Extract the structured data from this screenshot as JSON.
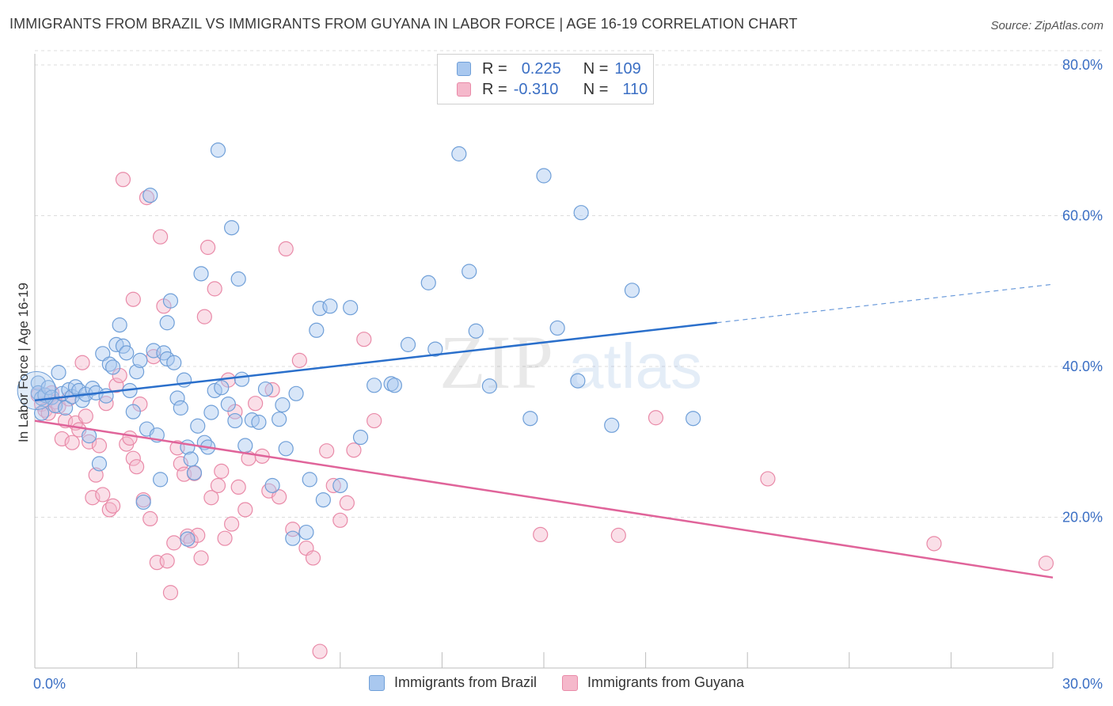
{
  "title": "IMMIGRANTS FROM BRAZIL VS IMMIGRANTS FROM GUYANA IN LABOR FORCE | AGE 16-19 CORRELATION CHART",
  "source": "Source: ZipAtlas.com",
  "watermark": {
    "zip": "ZIP",
    "atlas": "atlas"
  },
  "legend": {
    "brazil": {
      "r_label": "R =",
      "r_value": "0.225",
      "n_label": "N =",
      "n_value": "109"
    },
    "guyana": {
      "r_label": "R =",
      "r_value": "-0.310",
      "n_label": "N =",
      "n_value": "110"
    }
  },
  "colors": {
    "brazil_fill": "#a9c8ef",
    "brazil_stroke": "#6f9fd8",
    "brazil_line": "#2a6fcb",
    "guyana_fill": "#f5b8cb",
    "guyana_stroke": "#e98aa8",
    "guyana_line": "#e0649a",
    "tick_label": "#3b6fc4",
    "grid": "#dcdcdc"
  },
  "chart_data": {
    "type": "scatter",
    "title": "IMMIGRANTS FROM BRAZIL VS IMMIGRANTS FROM GUYANA IN LABOR FORCE | AGE 16-19 CORRELATION CHART",
    "xlabel": "",
    "ylabel": "In Labor Force | Age 16-19",
    "xlim": [
      0,
      30
    ],
    "ylim": [
      0,
      80
    ],
    "x_tick_labels": [
      "0.0%",
      "30.0%"
    ],
    "y_ticks": [
      20,
      40,
      60,
      80
    ],
    "y_tick_labels": [
      "20.0%",
      "40.0%",
      "60.0%",
      "80.0%"
    ],
    "grid": true,
    "legend_position": "top-center",
    "series": [
      {
        "name": "Immigrants from Brazil",
        "trend": {
          "x0": 0,
          "y0": 35.5,
          "x1": 20.1,
          "y1": 45.8,
          "dash_x1": 30,
          "dash_y1": 50.9
        },
        "points": [
          [
            0.1,
            37.8
          ],
          [
            0.1,
            36.5
          ],
          [
            0.2,
            35.8
          ],
          [
            0.2,
            33.8
          ],
          [
            0.3,
            36.2
          ],
          [
            0.4,
            37.2
          ],
          [
            0.5,
            35.9
          ],
          [
            0.6,
            34.8
          ],
          [
            0.7,
            39.2
          ],
          [
            0.8,
            36.4
          ],
          [
            0.9,
            34.5
          ],
          [
            1.0,
            36.9
          ],
          [
            1.1,
            36.0
          ],
          [
            1.2,
            37.3
          ],
          [
            1.3,
            36.8
          ],
          [
            1.4,
            35.5
          ],
          [
            1.5,
            36.3
          ],
          [
            1.6,
            30.8
          ],
          [
            1.7,
            37.1
          ],
          [
            1.8,
            36.5
          ],
          [
            1.9,
            27.1
          ],
          [
            2.0,
            41.7
          ],
          [
            2.1,
            36.1
          ],
          [
            2.2,
            40.3
          ],
          [
            2.3,
            39.9
          ],
          [
            2.4,
            42.9
          ],
          [
            2.5,
            45.5
          ],
          [
            2.6,
            42.7
          ],
          [
            2.7,
            41.8
          ],
          [
            2.8,
            36.8
          ],
          [
            2.9,
            34.0
          ],
          [
            3.0,
            39.3
          ],
          [
            3.1,
            40.8
          ],
          [
            3.2,
            22.0
          ],
          [
            3.3,
            31.7
          ],
          [
            3.4,
            62.7
          ],
          [
            3.5,
            42.1
          ],
          [
            3.6,
            30.9
          ],
          [
            3.7,
            25.0
          ],
          [
            3.8,
            41.8
          ],
          [
            3.9,
            41.0
          ],
          [
            3.9,
            45.8
          ],
          [
            4.0,
            48.7
          ],
          [
            4.1,
            40.5
          ],
          [
            4.2,
            35.8
          ],
          [
            4.3,
            34.5
          ],
          [
            4.4,
            38.2
          ],
          [
            4.5,
            29.3
          ],
          [
            4.5,
            17.1
          ],
          [
            4.6,
            27.7
          ],
          [
            4.7,
            25.9
          ],
          [
            4.8,
            32.1
          ],
          [
            4.9,
            52.3
          ],
          [
            5.0,
            29.9
          ],
          [
            5.1,
            29.3
          ],
          [
            5.2,
            33.9
          ],
          [
            5.3,
            36.8
          ],
          [
            5.4,
            68.7
          ],
          [
            5.5,
            37.2
          ],
          [
            5.7,
            35.0
          ],
          [
            5.8,
            58.4
          ],
          [
            5.9,
            32.8
          ],
          [
            6.0,
            51.6
          ],
          [
            6.1,
            38.3
          ],
          [
            6.2,
            29.5
          ],
          [
            6.4,
            32.9
          ],
          [
            6.6,
            32.6
          ],
          [
            6.8,
            37.0
          ],
          [
            7.0,
            24.2
          ],
          [
            7.2,
            33.0
          ],
          [
            7.3,
            34.9
          ],
          [
            7.4,
            29.1
          ],
          [
            7.6,
            17.2
          ],
          [
            7.7,
            36.4
          ],
          [
            8.0,
            18.0
          ],
          [
            8.1,
            25.0
          ],
          [
            8.3,
            44.8
          ],
          [
            8.4,
            47.7
          ],
          [
            8.5,
            22.3
          ],
          [
            8.7,
            48.0
          ],
          [
            9.0,
            24.2
          ],
          [
            9.3,
            47.8
          ],
          [
            9.6,
            30.6
          ],
          [
            10.0,
            37.5
          ],
          [
            10.5,
            37.7
          ],
          [
            10.6,
            37.5
          ],
          [
            11.0,
            42.9
          ],
          [
            11.6,
            51.1
          ],
          [
            11.8,
            42.3
          ],
          [
            12.5,
            68.2
          ],
          [
            12.8,
            52.6
          ],
          [
            13.0,
            44.7
          ],
          [
            13.4,
            37.4
          ],
          [
            14.6,
            33.1
          ],
          [
            15.0,
            65.3
          ],
          [
            15.4,
            45.1
          ],
          [
            16.1,
            60.4
          ],
          [
            16.0,
            38.1
          ],
          [
            17.0,
            32.2
          ],
          [
            17.6,
            50.1
          ],
          [
            19.4,
            33.1
          ]
        ]
      },
      {
        "name": "Immigrants from Guyana",
        "trend": {
          "x0": 0,
          "y0": 32.8,
          "x1": 30,
          "y1": 12.0
        },
        "points": [
          [
            0.1,
            36.2
          ],
          [
            0.2,
            35.0
          ],
          [
            0.3,
            34.2
          ],
          [
            0.4,
            33.8
          ],
          [
            0.5,
            36.5
          ],
          [
            0.6,
            35.3
          ],
          [
            0.7,
            34.7
          ],
          [
            0.8,
            30.4
          ],
          [
            0.9,
            32.8
          ],
          [
            1.0,
            35.7
          ],
          [
            1.1,
            29.9
          ],
          [
            1.2,
            32.5
          ],
          [
            1.3,
            31.6
          ],
          [
            1.4,
            40.5
          ],
          [
            1.5,
            33.4
          ],
          [
            1.6,
            30.0
          ],
          [
            1.7,
            22.6
          ],
          [
            1.8,
            25.6
          ],
          [
            1.9,
            29.5
          ],
          [
            2.0,
            23.0
          ],
          [
            2.1,
            35.1
          ],
          [
            2.2,
            21.0
          ],
          [
            2.3,
            21.5
          ],
          [
            2.4,
            37.5
          ],
          [
            2.5,
            38.8
          ],
          [
            2.6,
            64.8
          ],
          [
            2.7,
            29.7
          ],
          [
            2.8,
            30.5
          ],
          [
            2.9,
            27.8
          ],
          [
            3.0,
            26.7
          ],
          [
            3.1,
            35.0
          ],
          [
            3.2,
            22.3
          ],
          [
            3.3,
            62.4
          ],
          [
            3.4,
            19.8
          ],
          [
            3.5,
            41.3
          ],
          [
            3.6,
            14.0
          ],
          [
            3.7,
            57.2
          ],
          [
            3.8,
            48.0
          ],
          [
            3.9,
            14.2
          ],
          [
            4.0,
            10.0
          ],
          [
            4.1,
            16.6
          ],
          [
            4.2,
            29.2
          ],
          [
            4.3,
            27.1
          ],
          [
            4.4,
            25.7
          ],
          [
            4.5,
            17.5
          ],
          [
            4.6,
            16.9
          ],
          [
            4.7,
            25.8
          ],
          [
            4.8,
            17.6
          ],
          [
            4.9,
            14.6
          ],
          [
            5.0,
            46.6
          ],
          [
            5.1,
            55.8
          ],
          [
            5.2,
            22.6
          ],
          [
            5.3,
            50.3
          ],
          [
            5.4,
            24.2
          ],
          [
            5.5,
            26.1
          ],
          [
            5.6,
            17.2
          ],
          [
            5.7,
            38.2
          ],
          [
            5.8,
            19.1
          ],
          [
            5.9,
            34.0
          ],
          [
            6.0,
            24.0
          ],
          [
            6.2,
            21.0
          ],
          [
            6.3,
            27.8
          ],
          [
            6.5,
            35.1
          ],
          [
            6.7,
            28.1
          ],
          [
            6.9,
            23.5
          ],
          [
            7.0,
            36.9
          ],
          [
            7.2,
            22.7
          ],
          [
            7.4,
            55.6
          ],
          [
            7.6,
            18.4
          ],
          [
            7.8,
            40.8
          ],
          [
            8.0,
            15.9
          ],
          [
            8.2,
            14.6
          ],
          [
            8.4,
            2.2
          ],
          [
            8.6,
            28.8
          ],
          [
            8.8,
            24.2
          ],
          [
            9.0,
            19.6
          ],
          [
            9.2,
            21.9
          ],
          [
            9.4,
            28.9
          ],
          [
            9.7,
            43.6
          ],
          [
            10.0,
            32.8
          ],
          [
            2.9,
            48.9
          ],
          [
            14.9,
            17.7
          ],
          [
            17.2,
            17.6
          ],
          [
            18.3,
            33.2
          ],
          [
            21.6,
            25.1
          ],
          [
            26.5,
            16.5
          ],
          [
            29.8,
            13.9
          ]
        ]
      }
    ]
  },
  "bottom_legend": {
    "brazil": "Immigrants from Brazil",
    "guyana": "Immigrants from Guyana"
  }
}
